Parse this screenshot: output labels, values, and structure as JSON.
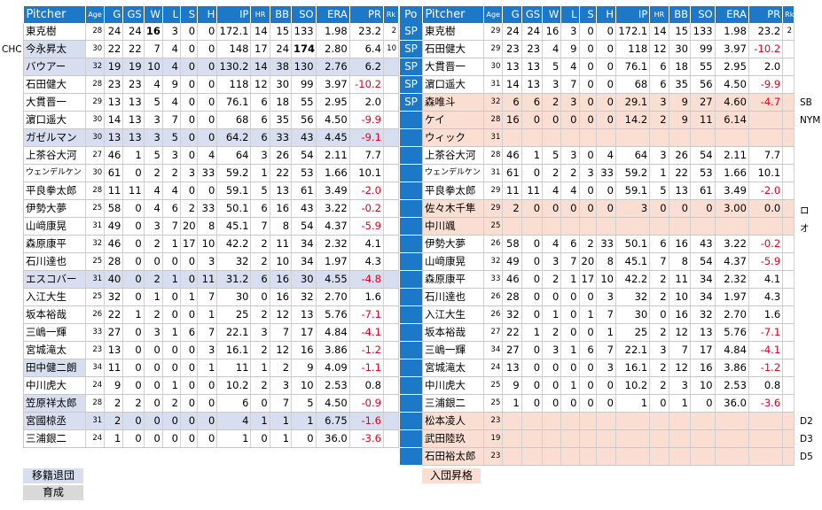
{
  "headers": {
    "pitcher": "Pitcher",
    "age": "Age",
    "g": "G",
    "gs": "GS",
    "w": "W",
    "l": "L",
    "s": "S",
    "h": "H",
    "ip": "IP",
    "hr": "HR",
    "bb": "BB",
    "so": "SO",
    "era": "ERA",
    "pr": "PR",
    "rk": "Rk",
    "po": "Po"
  },
  "left_rows": [
    {
      "name": "東克樹",
      "age": "28",
      "g": "24",
      "gs": "24",
      "w": "16",
      "l": "3",
      "s": "0",
      "h": "0",
      "ip": "172.1",
      "hr": "14",
      "bb": "15",
      "so": "133",
      "era": "1.98",
      "pr": "23.2",
      "rk": "2",
      "style": "",
      "w_bold": true
    },
    {
      "name": "今永昇太",
      "age": "30",
      "g": "22",
      "gs": "22",
      "w": "7",
      "l": "4",
      "s": "0",
      "h": "0",
      "ip": "148",
      "hr": "17",
      "bb": "24",
      "so": "174",
      "era": "2.80",
      "pr": "6.4",
      "rk": "10",
      "style": "hl",
      "so_bold": true
    },
    {
      "name": "バウアー",
      "age": "32",
      "g": "19",
      "gs": "19",
      "w": "10",
      "l": "4",
      "s": "0",
      "h": "0",
      "ip": "130.2",
      "hr": "14",
      "bb": "38",
      "so": "130",
      "era": "2.76",
      "pr": "6.2",
      "rk": "",
      "style": "hlrow"
    },
    {
      "name": "石田健大",
      "age": "28",
      "g": "23",
      "gs": "23",
      "w": "4",
      "l": "9",
      "s": "0",
      "h": "0",
      "ip": "118",
      "hr": "12",
      "bb": "30",
      "so": "99",
      "era": "3.97",
      "pr": "-10.2",
      "rk": "",
      "style": ""
    },
    {
      "name": "大貫晋一",
      "age": "29",
      "g": "13",
      "gs": "13",
      "w": "5",
      "l": "4",
      "s": "0",
      "h": "0",
      "ip": "76.1",
      "hr": "6",
      "bb": "18",
      "so": "55",
      "era": "2.95",
      "pr": "2.0",
      "rk": "",
      "style": ""
    },
    {
      "name": "濵口遥大",
      "age": "30",
      "g": "14",
      "gs": "13",
      "w": "3",
      "l": "7",
      "s": "0",
      "h": "0",
      "ip": "68",
      "hr": "6",
      "bb": "35",
      "so": "56",
      "era": "4.50",
      "pr": "-9.9",
      "rk": "",
      "style": ""
    },
    {
      "name": "ガゼルマン",
      "age": "30",
      "g": "13",
      "gs": "13",
      "w": "3",
      "l": "5",
      "s": "0",
      "h": "0",
      "ip": "64.2",
      "hr": "6",
      "bb": "33",
      "so": "43",
      "era": "4.45",
      "pr": "-9.1",
      "rk": "",
      "style": "hlrow"
    },
    {
      "name": "上茶谷大河",
      "age": "27",
      "g": "46",
      "gs": "1",
      "w": "5",
      "l": "3",
      "s": "0",
      "h": "4",
      "ip": "64",
      "hr": "3",
      "bb": "26",
      "so": "54",
      "era": "2.11",
      "pr": "7.7",
      "rk": "",
      "style": ""
    },
    {
      "name": "ウェンデルケン",
      "age": "30",
      "g": "61",
      "gs": "0",
      "w": "2",
      "l": "2",
      "s": "3",
      "h": "33",
      "ip": "59.2",
      "hr": "1",
      "bb": "22",
      "so": "53",
      "era": "1.66",
      "pr": "10.1",
      "rk": "",
      "style": "",
      "small": true
    },
    {
      "name": "平良拳太郎",
      "age": "28",
      "g": "11",
      "gs": "11",
      "w": "4",
      "l": "4",
      "s": "0",
      "h": "0",
      "ip": "59.1",
      "hr": "5",
      "bb": "13",
      "so": "61",
      "era": "3.49",
      "pr": "-2.0",
      "rk": "",
      "style": ""
    },
    {
      "name": "伊勢大夢",
      "age": "25",
      "g": "58",
      "gs": "0",
      "w": "4",
      "l": "6",
      "s": "2",
      "h": "33",
      "ip": "50.1",
      "hr": "6",
      "bb": "16",
      "so": "43",
      "era": "3.22",
      "pr": "-0.2",
      "rk": "",
      "style": ""
    },
    {
      "name": "山﨑康晃",
      "age": "31",
      "g": "49",
      "gs": "0",
      "w": "3",
      "l": "7",
      "s": "20",
      "h": "8",
      "ip": "45.1",
      "hr": "7",
      "bb": "8",
      "so": "54",
      "era": "4.37",
      "pr": "-5.9",
      "rk": "",
      "style": ""
    },
    {
      "name": "森原康平",
      "age": "32",
      "g": "46",
      "gs": "0",
      "w": "2",
      "l": "1",
      "s": "17",
      "h": "10",
      "ip": "42.2",
      "hr": "2",
      "bb": "11",
      "so": "34",
      "era": "2.32",
      "pr": "4.1",
      "rk": "",
      "style": ""
    },
    {
      "name": "石川達也",
      "age": "25",
      "g": "28",
      "gs": "0",
      "w": "0",
      "l": "0",
      "s": "0",
      "h": "3",
      "ip": "32",
      "hr": "2",
      "bb": "10",
      "so": "34",
      "era": "1.97",
      "pr": "4.3",
      "rk": "",
      "style": ""
    },
    {
      "name": "エスコバー",
      "age": "31",
      "g": "40",
      "gs": "0",
      "w": "2",
      "l": "1",
      "s": "0",
      "h": "11",
      "ip": "31.2",
      "hr": "6",
      "bb": "16",
      "so": "30",
      "era": "4.55",
      "pr": "-4.8",
      "rk": "",
      "style": "hlrow"
    },
    {
      "name": "入江大生",
      "age": "25",
      "g": "32",
      "gs": "0",
      "w": "1",
      "l": "0",
      "s": "1",
      "h": "7",
      "ip": "30",
      "hr": "0",
      "bb": "16",
      "so": "32",
      "era": "2.70",
      "pr": "1.6",
      "rk": "",
      "style": ""
    },
    {
      "name": "坂本裕哉",
      "age": "26",
      "g": "22",
      "gs": "1",
      "w": "2",
      "l": "0",
      "s": "0",
      "h": "1",
      "ip": "25",
      "hr": "2",
      "bb": "12",
      "so": "13",
      "era": "5.76",
      "pr": "-7.1",
      "rk": "",
      "style": ""
    },
    {
      "name": "三嶋一輝",
      "age": "33",
      "g": "27",
      "gs": "0",
      "w": "3",
      "l": "1",
      "s": "6",
      "h": "7",
      "ip": "22.1",
      "hr": "3",
      "bb": "7",
      "so": "17",
      "era": "4.84",
      "pr": "-4.1",
      "rk": "",
      "style": ""
    },
    {
      "name": "宮城滝太",
      "age": "23",
      "g": "13",
      "gs": "0",
      "w": "0",
      "l": "0",
      "s": "0",
      "h": "3",
      "ip": "16.1",
      "hr": "2",
      "bb": "12",
      "so": "16",
      "era": "3.86",
      "pr": "-1.2",
      "rk": "",
      "style": ""
    },
    {
      "name": "田中健二朗",
      "age": "34",
      "g": "11",
      "gs": "0",
      "w": "0",
      "l": "0",
      "s": "0",
      "h": "1",
      "ip": "11",
      "hr": "1",
      "bb": "2",
      "so": "9",
      "era": "4.09",
      "pr": "-1.1",
      "rk": "",
      "style": "hl"
    },
    {
      "name": "中川虎大",
      "age": "24",
      "g": "9",
      "gs": "0",
      "w": "0",
      "l": "1",
      "s": "0",
      "h": "0",
      "ip": "10.2",
      "hr": "2",
      "bb": "3",
      "so": "10",
      "era": "2.53",
      "pr": "0.8",
      "rk": "",
      "style": ""
    },
    {
      "name": "笠原祥太郎",
      "age": "28",
      "g": "2",
      "gs": "2",
      "w": "0",
      "l": "2",
      "s": "0",
      "h": "0",
      "ip": "6",
      "hr": "0",
      "bb": "7",
      "so": "5",
      "era": "4.50",
      "pr": "-0.9",
      "rk": "",
      "style": "hl"
    },
    {
      "name": "宮國椋丞",
      "age": "31",
      "g": "2",
      "gs": "0",
      "w": "0",
      "l": "0",
      "s": "0",
      "h": "0",
      "ip": "4",
      "hr": "1",
      "bb": "1",
      "so": "1",
      "era": "6.75",
      "pr": "-1.6",
      "rk": "",
      "style": "hlrow"
    },
    {
      "name": "三浦銀二",
      "age": "24",
      "g": "1",
      "gs": "0",
      "w": "0",
      "l": "0",
      "s": "0",
      "h": "0",
      "ip": "1",
      "hr": "0",
      "bb": "1",
      "so": "0",
      "era": "36.0",
      "pr": "-3.6",
      "rk": "",
      "style": ""
    }
  ],
  "left_side_labels": [
    {
      "row": 1,
      "text": "CHC"
    }
  ],
  "positions": [
    "SP",
    "SP",
    "SP",
    "SP",
    "SP"
  ],
  "right_rows": [
    {
      "name": "東克樹",
      "age": "29",
      "g": "24",
      "gs": "24",
      "w": "16",
      "l": "3",
      "s": "0",
      "h": "0",
      "ip": "172.1",
      "hr": "14",
      "bb": "15",
      "so": "133",
      "era": "1.98",
      "pr": "23.2",
      "rk": "2",
      "style": ""
    },
    {
      "name": "石田健大",
      "age": "29",
      "g": "23",
      "gs": "23",
      "w": "4",
      "l": "9",
      "s": "0",
      "h": "0",
      "ip": "118",
      "hr": "12",
      "bb": "30",
      "so": "99",
      "era": "3.97",
      "pr": "-10.2",
      "rk": "",
      "style": ""
    },
    {
      "name": "大貫晋一",
      "age": "30",
      "g": "13",
      "gs": "13",
      "w": "5",
      "l": "4",
      "s": "0",
      "h": "0",
      "ip": "76.1",
      "hr": "6",
      "bb": "18",
      "so": "55",
      "era": "2.95",
      "pr": "2.0",
      "rk": "",
      "style": ""
    },
    {
      "name": "濵口遥大",
      "age": "31",
      "g": "14",
      "gs": "13",
      "w": "3",
      "l": "7",
      "s": "0",
      "h": "0",
      "ip": "68",
      "hr": "6",
      "bb": "35",
      "so": "56",
      "era": "4.50",
      "pr": "-9.9",
      "rk": "",
      "style": ""
    },
    {
      "name": "森唯斗",
      "age": "32",
      "g": "6",
      "gs": "6",
      "w": "2",
      "l": "3",
      "s": "0",
      "h": "0",
      "ip": "29.1",
      "hr": "3",
      "bb": "9",
      "so": "27",
      "era": "4.60",
      "pr": "-4.7",
      "rk": "",
      "style": "pink"
    },
    {
      "name": "ケイ",
      "age": "28",
      "g": "16",
      "gs": "0",
      "w": "0",
      "l": "0",
      "s": "0",
      "h": "0",
      "ip": "14.2",
      "hr": "2",
      "bb": "9",
      "so": "11",
      "era": "6.14",
      "pr": "",
      "rk": "",
      "style": "pink"
    },
    {
      "name": "ウィック",
      "age": "31",
      "g": "",
      "gs": "",
      "w": "",
      "l": "",
      "s": "",
      "h": "",
      "ip": "",
      "hr": "",
      "bb": "",
      "so": "",
      "era": "",
      "pr": "",
      "rk": "",
      "style": "pink"
    },
    {
      "name": "上茶谷大河",
      "age": "28",
      "g": "46",
      "gs": "1",
      "w": "5",
      "l": "3",
      "s": "0",
      "h": "4",
      "ip": "64",
      "hr": "3",
      "bb": "26",
      "so": "54",
      "era": "2.11",
      "pr": "7.7",
      "rk": "",
      "style": ""
    },
    {
      "name": "ウェンデルケン",
      "age": "31",
      "g": "61",
      "gs": "0",
      "w": "2",
      "l": "2",
      "s": "3",
      "h": "33",
      "ip": "59.2",
      "hr": "1",
      "bb": "22",
      "so": "53",
      "era": "1.66",
      "pr": "10.1",
      "rk": "",
      "style": "",
      "small": true
    },
    {
      "name": "平良拳太郎",
      "age": "29",
      "g": "11",
      "gs": "11",
      "w": "4",
      "l": "4",
      "s": "0",
      "h": "0",
      "ip": "59.1",
      "hr": "5",
      "bb": "13",
      "so": "61",
      "era": "3.49",
      "pr": "-2.0",
      "rk": "",
      "style": ""
    },
    {
      "name": "佐々木千隼",
      "age": "29",
      "g": "2",
      "gs": "0",
      "w": "0",
      "l": "0",
      "s": "0",
      "h": "0",
      "ip": "3",
      "hr": "0",
      "bb": "0",
      "so": "0",
      "era": "3.00",
      "pr": "0.0",
      "rk": "",
      "style": "pink"
    },
    {
      "name": "中川颯",
      "age": "25",
      "g": "",
      "gs": "",
      "w": "",
      "l": "",
      "s": "",
      "h": "",
      "ip": "",
      "hr": "",
      "bb": "",
      "so": "",
      "era": "",
      "pr": "",
      "rk": "",
      "style": "pink"
    },
    {
      "name": "伊勢大夢",
      "age": "26",
      "g": "58",
      "gs": "0",
      "w": "4",
      "l": "6",
      "s": "2",
      "h": "33",
      "ip": "50.1",
      "hr": "6",
      "bb": "16",
      "so": "43",
      "era": "3.22",
      "pr": "-0.2",
      "rk": "",
      "style": ""
    },
    {
      "name": "山﨑康晃",
      "age": "32",
      "g": "49",
      "gs": "0",
      "w": "3",
      "l": "7",
      "s": "20",
      "h": "8",
      "ip": "45.1",
      "hr": "7",
      "bb": "8",
      "so": "54",
      "era": "4.37",
      "pr": "-5.9",
      "rk": "",
      "style": ""
    },
    {
      "name": "森原康平",
      "age": "33",
      "g": "46",
      "gs": "0",
      "w": "2",
      "l": "1",
      "s": "17",
      "h": "10",
      "ip": "42.2",
      "hr": "2",
      "bb": "11",
      "so": "34",
      "era": "2.32",
      "pr": "4.1",
      "rk": "",
      "style": ""
    },
    {
      "name": "石川達也",
      "age": "26",
      "g": "28",
      "gs": "0",
      "w": "0",
      "l": "0",
      "s": "0",
      "h": "3",
      "ip": "32",
      "hr": "2",
      "bb": "10",
      "so": "34",
      "era": "1.97",
      "pr": "4.3",
      "rk": "",
      "style": ""
    },
    {
      "name": "入江大生",
      "age": "26",
      "g": "32",
      "gs": "0",
      "w": "1",
      "l": "0",
      "s": "1",
      "h": "7",
      "ip": "30",
      "hr": "0",
      "bb": "16",
      "so": "32",
      "era": "2.70",
      "pr": "1.6",
      "rk": "",
      "style": ""
    },
    {
      "name": "坂本裕哉",
      "age": "27",
      "g": "22",
      "gs": "1",
      "w": "2",
      "l": "0",
      "s": "0",
      "h": "1",
      "ip": "25",
      "hr": "2",
      "bb": "12",
      "so": "13",
      "era": "5.76",
      "pr": "-7.1",
      "rk": "",
      "style": ""
    },
    {
      "name": "三嶋一輝",
      "age": "34",
      "g": "27",
      "gs": "0",
      "w": "3",
      "l": "1",
      "s": "6",
      "h": "7",
      "ip": "22.1",
      "hr": "3",
      "bb": "7",
      "so": "17",
      "era": "4.84",
      "pr": "-4.1",
      "rk": "",
      "style": ""
    },
    {
      "name": "宮城滝太",
      "age": "24",
      "g": "13",
      "gs": "0",
      "w": "0",
      "l": "0",
      "s": "0",
      "h": "3",
      "ip": "16.1",
      "hr": "2",
      "bb": "12",
      "so": "16",
      "era": "3.86",
      "pr": "-1.2",
      "rk": "",
      "style": ""
    },
    {
      "name": "中川虎大",
      "age": "25",
      "g": "9",
      "gs": "0",
      "w": "0",
      "l": "1",
      "s": "0",
      "h": "0",
      "ip": "10.2",
      "hr": "2",
      "bb": "3",
      "so": "10",
      "era": "2.53",
      "pr": "0.8",
      "rk": "",
      "style": ""
    },
    {
      "name": "三浦銀二",
      "age": "25",
      "g": "1",
      "gs": "0",
      "w": "0",
      "l": "0",
      "s": "0",
      "h": "0",
      "ip": "1",
      "hr": "0",
      "bb": "1",
      "so": "0",
      "era": "36.0",
      "pr": "-3.6",
      "rk": "",
      "style": ""
    },
    {
      "name": "松本凌人",
      "age": "23",
      "g": "",
      "gs": "",
      "w": "",
      "l": "",
      "s": "",
      "h": "",
      "ip": "",
      "hr": "",
      "bb": "",
      "so": "",
      "era": "",
      "pr": "",
      "rk": "",
      "style": "pink"
    },
    {
      "name": "武田陸玖",
      "age": "19",
      "g": "",
      "gs": "",
      "w": "",
      "l": "",
      "s": "",
      "h": "",
      "ip": "",
      "hr": "",
      "bb": "",
      "so": "",
      "era": "",
      "pr": "",
      "rk": "",
      "style": "pink"
    },
    {
      "name": "石田裕太郎",
      "age": "23",
      "g": "",
      "gs": "",
      "w": "",
      "l": "",
      "s": "",
      "h": "",
      "ip": "",
      "hr": "",
      "bb": "",
      "so": "",
      "era": "",
      "pr": "",
      "rk": "",
      "style": "pink"
    }
  ],
  "right_side_labels": [
    {
      "row": 4,
      "text": "SB"
    },
    {
      "row": 5,
      "text": "NYM"
    },
    {
      "row": 10,
      "text": "ロ"
    },
    {
      "row": 11,
      "text": "オ"
    },
    {
      "row": 22,
      "text": "D2"
    },
    {
      "row": 23,
      "text": "D3"
    },
    {
      "row": 24,
      "text": "D5"
    }
  ],
  "legend": {
    "transfer": "移籍退団",
    "develop": "育成",
    "entry": "入団昇格"
  },
  "colors": {
    "header_blue": "#1e78c8",
    "highlight_blue": "#d6deef",
    "highlight_pink": "#fbded2",
    "negative_red": "#e0001b",
    "develop_gray": "#d9d9d9"
  }
}
